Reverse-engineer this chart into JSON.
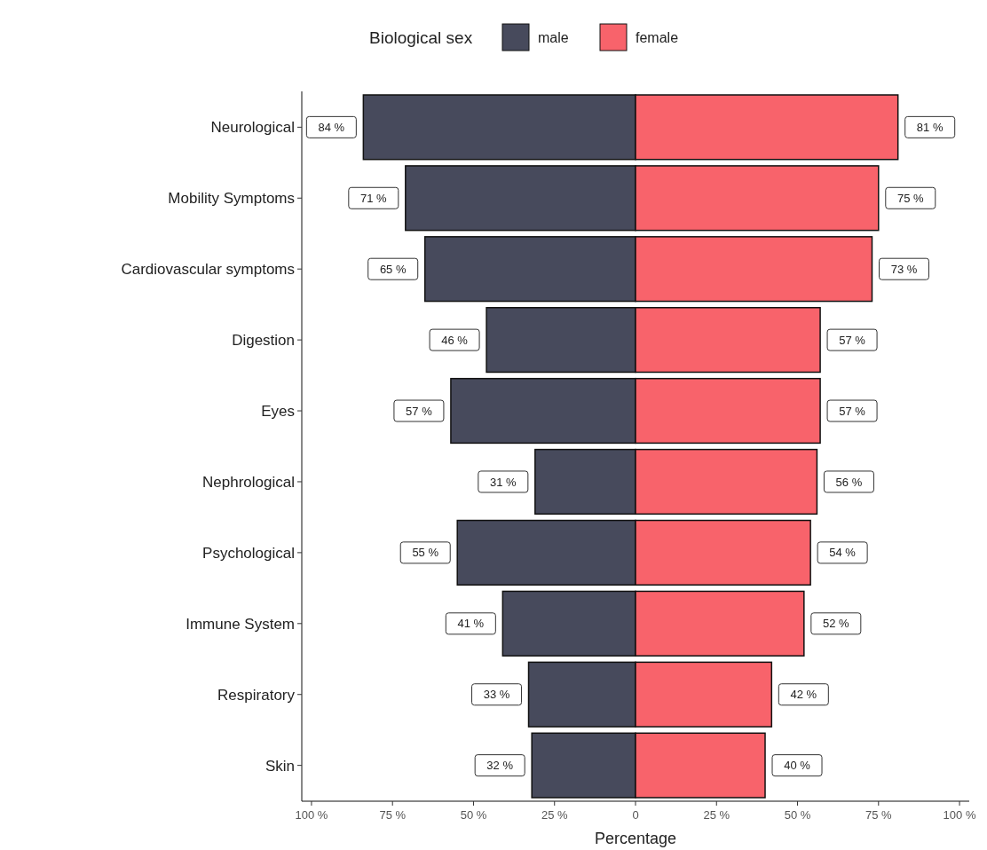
{
  "chart_data": {
    "type": "bar",
    "orientation": "horizontal",
    "xlabel": "Percentage",
    "legend_title": "Biological sex",
    "legend": "top",
    "grid": false,
    "categories": [
      "Neurological",
      "Mobility Symptoms",
      "Cardiovascular symptoms",
      "Digestion",
      "Eyes",
      "Nephrological",
      "Psychological",
      "Immune System",
      "Respiratory",
      "Skin"
    ],
    "xlim": [
      -103,
      103
    ],
    "xticks": [
      {
        "value": -100,
        "label": "100 %"
      },
      {
        "value": -75,
        "label": "75 %"
      },
      {
        "value": -50,
        "label": "50 %"
      },
      {
        "value": -25,
        "label": "25 %"
      },
      0,
      {
        "value": 25,
        "label": "25 %"
      },
      {
        "value": 50,
        "label": "50 %"
      },
      {
        "value": 75,
        "label": "75 %"
      },
      {
        "value": 100,
        "label": "100 %"
      }
    ],
    "series": [
      {
        "name": "male",
        "color": "#474a5c",
        "base": [
          -84,
          -71,
          -65,
          -46,
          -57,
          -31,
          -55,
          -41,
          -33,
          -32
        ],
        "values": [
          84,
          71,
          65,
          46,
          57,
          31,
          55,
          41,
          33,
          32
        ],
        "value_labels": [
          "84 %",
          "71 %",
          "65 %",
          "46 %",
          "57 %",
          "31 %",
          "55 %",
          "41 %",
          "33 %",
          "32 %"
        ]
      },
      {
        "name": "female",
        "color": "#f8636b",
        "values": [
          81,
          75,
          73,
          57,
          57,
          56,
          54,
          52,
          42,
          40
        ],
        "value_labels": [
          "81 %",
          "75 %",
          "73 %",
          "57 %",
          "57 %",
          "56 %",
          "54 %",
          "52 %",
          "42 %",
          "40 %"
        ]
      }
    ]
  }
}
